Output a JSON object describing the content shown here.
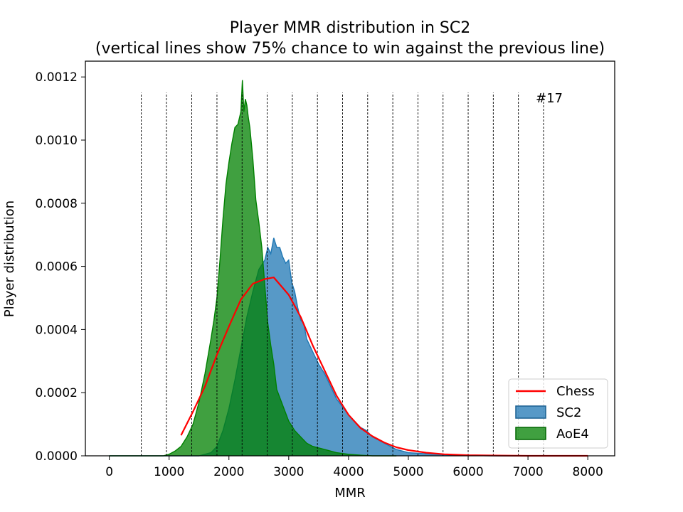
{
  "chart_data": {
    "type": "area",
    "title": "Player MMR distribution in SC2",
    "subtitle": "(vertical lines show 75% chance to win against the previous line)",
    "xlabel": "MMR",
    "ylabel": "Player distribution",
    "xlim": [
      -400,
      8450
    ],
    "ylim": [
      0,
      0.00125
    ],
    "xticks": [
      0,
      1000,
      2000,
      3000,
      4000,
      5000,
      6000,
      7000,
      8000
    ],
    "xtick_labels": [
      "0",
      "1000",
      "2000",
      "3000",
      "4000",
      "5000",
      "6000",
      "7000",
      "8000"
    ],
    "yticks": [
      0,
      0.0002,
      0.0004,
      0.0006,
      0.0008,
      0.001,
      0.0012
    ],
    "ytick_labels": [
      "0.0000",
      "0.0002",
      "0.0004",
      "0.0006",
      "0.0008",
      "0.0010",
      "0.0012"
    ],
    "grid": false,
    "annotation": "#17",
    "vlines": {
      "x": [
        535,
        955,
        1378,
        1800,
        2220,
        2640,
        3060,
        3480,
        3900,
        4320,
        4740,
        5160,
        5580,
        6000,
        6420,
        6840,
        7260
      ],
      "ymax": 0.00115,
      "color": "#000000",
      "style": "dashed"
    },
    "legend": {
      "position": "lower-right",
      "entries": [
        {
          "label": "Chess",
          "kind": "line",
          "color": "#ff0000"
        },
        {
          "label": "SC2",
          "kind": "patch",
          "color": "#1f77b4"
        },
        {
          "label": "AoE4",
          "kind": "patch",
          "color": "#008000"
        }
      ]
    },
    "series": [
      {
        "name": "SC2",
        "kind": "area",
        "color": "#1f77b4",
        "fill_opacity": 0.75,
        "x": [
          0,
          1000,
          1500,
          1700,
          1800,
          1900,
          2000,
          2100,
          2200,
          2300,
          2400,
          2500,
          2600,
          2650,
          2700,
          2750,
          2800,
          2850,
          2900,
          2950,
          3000,
          3050,
          3100,
          3150,
          3200,
          3250,
          3300,
          3400,
          3500,
          3600,
          3700,
          3800,
          3900,
          4000,
          4100,
          4200,
          4300,
          4400,
          4500,
          4600,
          4700,
          4800,
          5000,
          5500,
          6000,
          6500,
          7000
        ],
        "y": [
          0,
          0,
          0,
          1e-05,
          3e-05,
          8e-05,
          0.00015,
          0.00024,
          0.00034,
          0.00044,
          0.00052,
          0.00059,
          0.00062,
          0.00066,
          0.00064,
          0.00069,
          0.00066,
          0.00066,
          0.00063,
          0.00061,
          0.00062,
          0.00055,
          0.00052,
          0.00047,
          0.00043,
          0.00042,
          0.00037,
          0.00033,
          0.00029,
          0.00026,
          0.00022,
          0.00018,
          0.000155,
          0.00013,
          0.00011,
          9e-05,
          8e-05,
          6e-05,
          5e-05,
          4e-05,
          3e-05,
          2e-05,
          1e-05,
          4e-06,
          1e-06,
          0,
          0
        ]
      },
      {
        "name": "AoE4",
        "kind": "area",
        "color": "#008000",
        "fill_opacity": 0.75,
        "x": [
          0,
          900,
          1000,
          1100,
          1200,
          1300,
          1400,
          1500,
          1600,
          1700,
          1750,
          1800,
          1850,
          1900,
          1950,
          2000,
          2050,
          2100,
          2150,
          2200,
          2225,
          2250,
          2275,
          2300,
          2325,
          2350,
          2400,
          2450,
          2500,
          2550,
          2600,
          2650,
          2700,
          2750,
          2800,
          2900,
          3000,
          3100,
          3200,
          3300,
          3400,
          3600,
          3800,
          4000,
          4200,
          4400,
          4600,
          4800
        ],
        "y": [
          0,
          0,
          5e-06,
          1.5e-05,
          3e-05,
          6e-05,
          0.0001,
          0.00017,
          0.00026,
          0.00037,
          0.00043,
          0.0005,
          0.00062,
          0.00075,
          0.00086,
          0.00093,
          0.00099,
          0.00104,
          0.00105,
          0.00109,
          0.00119,
          0.00109,
          0.00113,
          0.00111,
          0.00107,
          0.00104,
          0.00094,
          0.00081,
          0.00074,
          0.00066,
          0.00054,
          0.00042,
          0.00035,
          0.00029,
          0.00021,
          0.00016,
          0.00011,
          8e-05,
          6e-05,
          4e-05,
          3e-05,
          2e-05,
          1e-05,
          5e-06,
          2e-06,
          0,
          0,
          0
        ]
      },
      {
        "name": "Chess",
        "kind": "line",
        "color": "#ff0000",
        "x": [
          1200,
          1400,
          1600,
          1800,
          2000,
          2200,
          2400,
          2600,
          2750,
          3000,
          3200,
          3400,
          3600,
          3800,
          4000,
          4200,
          4400,
          4600,
          4800,
          5000,
          5300,
          5600,
          6000,
          6500,
          7000,
          8000
        ],
        "y": [
          6.5e-05,
          0.00014,
          0.00022,
          0.00032,
          0.00041,
          0.000495,
          0.000545,
          0.00056,
          0.000565,
          0.00051,
          0.00044,
          0.00035,
          0.00027,
          0.00019,
          0.00013,
          8.8e-05,
          6.2e-05,
          4.2e-05,
          2.7e-05,
          1.8e-05,
          1e-05,
          5e-06,
          2e-06,
          1e-06,
          0,
          0
        ]
      }
    ]
  }
}
